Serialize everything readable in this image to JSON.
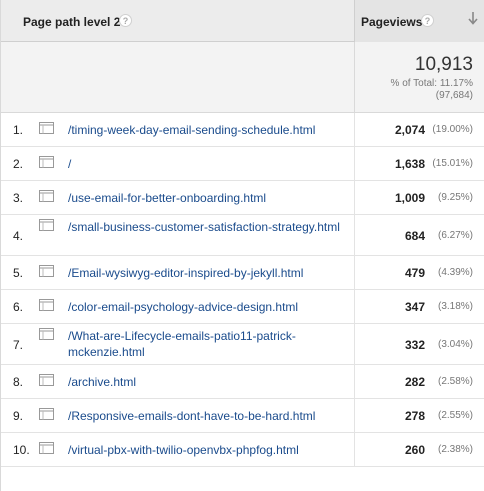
{
  "header": {
    "dimension_label": "Page path level 2",
    "metric_label": "Pageviews",
    "help_glyph": "?"
  },
  "totals": {
    "value": "10,913",
    "percent_of_total": "% of Total: 11.17%",
    "absolute_total": "(97,684)"
  },
  "rows": [
    {
      "index": "1.",
      "path": "/timing-week-day-email-sending-schedule.html",
      "pageviews": "2,074",
      "percent": "(19.00%)"
    },
    {
      "index": "2.",
      "path": "/",
      "pageviews": "1,638",
      "percent": "(15.01%)"
    },
    {
      "index": "3.",
      "path": "/use-email-for-better-onboarding.html",
      "pageviews": "1,009",
      "percent": "(9.25%)"
    },
    {
      "index": "4.",
      "path": "/small-business-customer-satisfaction-strategy.html",
      "pageviews": "684",
      "percent": "(6.27%)"
    },
    {
      "index": "5.",
      "path": "/Email-wysiwyg-editor-inspired-by-jekyll.html",
      "pageviews": "479",
      "percent": "(4.39%)"
    },
    {
      "index": "6.",
      "path": "/color-email-psychology-advice-design.html",
      "pageviews": "347",
      "percent": "(3.18%)"
    },
    {
      "index": "7.",
      "path": "/What-are-Lifecycle-emails-patio11-patrick-mckenzie.html",
      "pageviews": "332",
      "percent": "(3.04%)"
    },
    {
      "index": "8.",
      "path": "/archive.html",
      "pageviews": "282",
      "percent": "(2.58%)"
    },
    {
      "index": "9.",
      "path": "/Responsive-emails-dont-have-to-be-hard.html",
      "pageviews": "278",
      "percent": "(2.55%)"
    },
    {
      "index": "10.",
      "path": "/virtual-pbx-with-twilio-openvbx-phpfog.html",
      "pageviews": "260",
      "percent": "(2.38%)"
    }
  ],
  "colors": {
    "link": "#1a4b8c",
    "header_bg": "#ececec",
    "totals_bg": "#f3f3f3"
  }
}
